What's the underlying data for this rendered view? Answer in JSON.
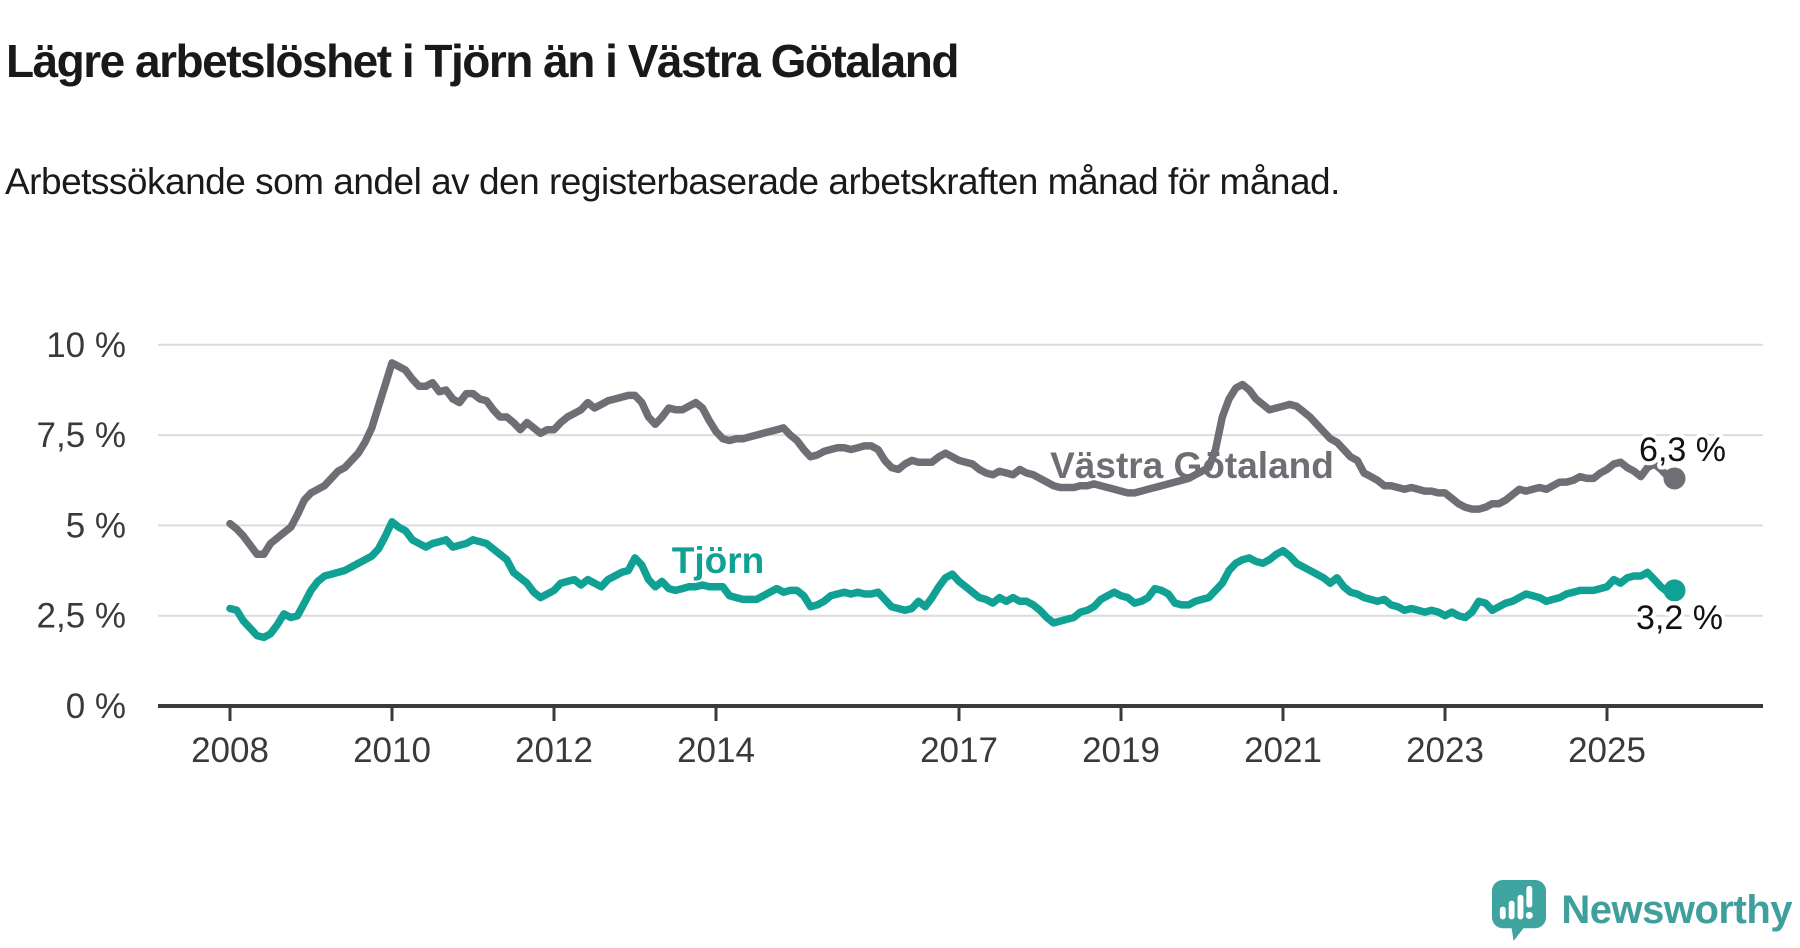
{
  "title": "Lägre arbetslöshet i Tjörn än i Västra Götaland",
  "subtitle": "Arbetssökande som andel av den registerbaserade arbetskraften månad för månad.",
  "branding": {
    "logo_text": "Newsworthy",
    "logo_icon": "newsworthy-speech-bubble-bar-chart-icon"
  },
  "colors": {
    "title_text": "#191919",
    "axis_text": "#3a3a3a",
    "gridline": "#dcdcdc",
    "axis_line": "#3a3a3a",
    "value_label": "#111111",
    "series_vastra_gotaland": "#6f6e74",
    "series_tjorn": "#10a194",
    "logo_teal": "#3fa3a0",
    "logo_text_teal": "#3f9f9c"
  },
  "chart_data": {
    "type": "line",
    "title": "",
    "xlabel": "",
    "ylabel": "",
    "units": "%",
    "grid": "horizontal",
    "legend": "inline-labels",
    "ylim": [
      0,
      10
    ],
    "x": {
      "start_year": 2008,
      "start_month": 1,
      "end_year": 2025,
      "end_month": 11,
      "frequency": "monthly"
    },
    "yticks": [
      {
        "value": 0,
        "label": "0 %"
      },
      {
        "value": 2.5,
        "label": "2,5 %"
      },
      {
        "value": 5,
        "label": "5 %"
      },
      {
        "value": 7.5,
        "label": "7,5 %"
      },
      {
        "value": 10,
        "label": "10 %"
      }
    ],
    "xticks": [
      {
        "year": 2008,
        "label": "2008"
      },
      {
        "year": 2010,
        "label": "2010"
      },
      {
        "year": 2012,
        "label": "2012"
      },
      {
        "year": 2014,
        "label": "2014"
      },
      {
        "year": 2017,
        "label": "2017"
      },
      {
        "year": 2019,
        "label": "2019"
      },
      {
        "year": 2021,
        "label": "2021"
      },
      {
        "year": 2023,
        "label": "2023"
      },
      {
        "year": 2025,
        "label": "2025"
      }
    ],
    "series": [
      {
        "name": "Västra Götaland",
        "color": "#6f6e74",
        "end_label": "6,3 %",
        "end_value": 6.3,
        "values": [
          5.05,
          4.9,
          4.7,
          4.45,
          4.2,
          4.2,
          4.5,
          4.65,
          4.8,
          4.95,
          5.3,
          5.7,
          5.9,
          6.0,
          6.1,
          6.3,
          6.5,
          6.6,
          6.8,
          7.0,
          7.3,
          7.7,
          8.3,
          8.9,
          9.5,
          9.4,
          9.3,
          9.05,
          8.85,
          8.85,
          8.95,
          8.7,
          8.75,
          8.5,
          8.4,
          8.65,
          8.65,
          8.5,
          8.45,
          8.2,
          8.0,
          8.0,
          7.85,
          7.65,
          7.85,
          7.7,
          7.55,
          7.65,
          7.65,
          7.85,
          8.0,
          8.1,
          8.2,
          8.4,
          8.25,
          8.35,
          8.45,
          8.5,
          8.55,
          8.6,
          8.6,
          8.4,
          8.0,
          7.8,
          8.0,
          8.25,
          8.2,
          8.2,
          8.3,
          8.4,
          8.25,
          7.9,
          7.6,
          7.4,
          7.35,
          7.4,
          7.4,
          7.45,
          7.5,
          7.55,
          7.6,
          7.65,
          7.7,
          7.5,
          7.35,
          7.1,
          6.9,
          6.95,
          7.05,
          7.1,
          7.15,
          7.15,
          7.1,
          7.15,
          7.2,
          7.2,
          7.1,
          6.8,
          6.6,
          6.55,
          6.7,
          6.8,
          6.75,
          6.75,
          6.75,
          6.9,
          7.0,
          6.9,
          6.8,
          6.75,
          6.7,
          6.55,
          6.45,
          6.4,
          6.5,
          6.45,
          6.4,
          6.55,
          6.45,
          6.4,
          6.3,
          6.2,
          6.1,
          6.05,
          6.05,
          6.05,
          6.1,
          6.1,
          6.15,
          6.1,
          6.05,
          6.0,
          5.95,
          5.9,
          5.9,
          5.95,
          6.0,
          6.05,
          6.1,
          6.15,
          6.2,
          6.25,
          6.3,
          6.4,
          6.5,
          6.6,
          7.1,
          8.0,
          8.5,
          8.8,
          8.9,
          8.75,
          8.5,
          8.35,
          8.2,
          8.25,
          8.3,
          8.35,
          8.3,
          8.15,
          8.0,
          7.8,
          7.6,
          7.4,
          7.3,
          7.1,
          6.9,
          6.8,
          6.45,
          6.35,
          6.25,
          6.1,
          6.1,
          6.05,
          6.0,
          6.05,
          6.0,
          5.95,
          5.95,
          5.9,
          5.9,
          5.75,
          5.6,
          5.5,
          5.45,
          5.45,
          5.5,
          5.6,
          5.6,
          5.7,
          5.85,
          6.0,
          5.95,
          6.0,
          6.05,
          6.0,
          6.1,
          6.2,
          6.2,
          6.25,
          6.35,
          6.3,
          6.3,
          6.45,
          6.55,
          6.7,
          6.75,
          6.6,
          6.5,
          6.35,
          6.6,
          6.7,
          6.55,
          6.35,
          6.3
        ]
      },
      {
        "name": "Tjörn",
        "color": "#10a194",
        "end_label": "3,2 %",
        "end_value": 3.2,
        "values": [
          2.7,
          2.65,
          2.35,
          2.15,
          1.95,
          1.9,
          2.0,
          2.25,
          2.55,
          2.45,
          2.5,
          2.85,
          3.2,
          3.45,
          3.6,
          3.65,
          3.7,
          3.75,
          3.85,
          3.95,
          4.05,
          4.15,
          4.35,
          4.7,
          5.1,
          4.95,
          4.85,
          4.6,
          4.5,
          4.4,
          4.5,
          4.55,
          4.6,
          4.4,
          4.45,
          4.5,
          4.6,
          4.55,
          4.5,
          4.35,
          4.2,
          4.05,
          3.7,
          3.55,
          3.4,
          3.15,
          3.0,
          3.1,
          3.2,
          3.4,
          3.45,
          3.5,
          3.35,
          3.5,
          3.4,
          3.3,
          3.5,
          3.6,
          3.7,
          3.75,
          4.1,
          3.9,
          3.5,
          3.3,
          3.45,
          3.25,
          3.2,
          3.25,
          3.3,
          3.3,
          3.35,
          3.3,
          3.3,
          3.3,
          3.05,
          3.0,
          2.95,
          2.95,
          2.95,
          3.05,
          3.15,
          3.25,
          3.15,
          3.2,
          3.2,
          3.05,
          2.75,
          2.8,
          2.9,
          3.05,
          3.1,
          3.15,
          3.1,
          3.15,
          3.1,
          3.1,
          3.15,
          2.95,
          2.75,
          2.7,
          2.65,
          2.7,
          2.9,
          2.75,
          3.0,
          3.3,
          3.55,
          3.65,
          3.45,
          3.3,
          3.15,
          3.0,
          2.95,
          2.85,
          3.0,
          2.9,
          3.0,
          2.9,
          2.9,
          2.8,
          2.65,
          2.45,
          2.3,
          2.35,
          2.4,
          2.45,
          2.6,
          2.65,
          2.75,
          2.95,
          3.05,
          3.15,
          3.05,
          3.0,
          2.85,
          2.9,
          3.0,
          3.25,
          3.2,
          3.1,
          2.85,
          2.8,
          2.8,
          2.9,
          2.95,
          3.0,
          3.2,
          3.4,
          3.75,
          3.95,
          4.05,
          4.1,
          4.0,
          3.95,
          4.05,
          4.2,
          4.3,
          4.15,
          3.95,
          3.85,
          3.75,
          3.65,
          3.55,
          3.4,
          3.55,
          3.3,
          3.15,
          3.1,
          3.0,
          2.95,
          2.9,
          2.95,
          2.8,
          2.75,
          2.65,
          2.7,
          2.65,
          2.6,
          2.65,
          2.6,
          2.5,
          2.6,
          2.5,
          2.45,
          2.6,
          2.9,
          2.85,
          2.65,
          2.75,
          2.85,
          2.9,
          3.0,
          3.1,
          3.05,
          3.0,
          2.9,
          2.95,
          3.0,
          3.1,
          3.15,
          3.2,
          3.2,
          3.2,
          3.25,
          3.3,
          3.5,
          3.4,
          3.55,
          3.6,
          3.6,
          3.7,
          3.5,
          3.3,
          3.15,
          3.2
        ]
      }
    ]
  }
}
